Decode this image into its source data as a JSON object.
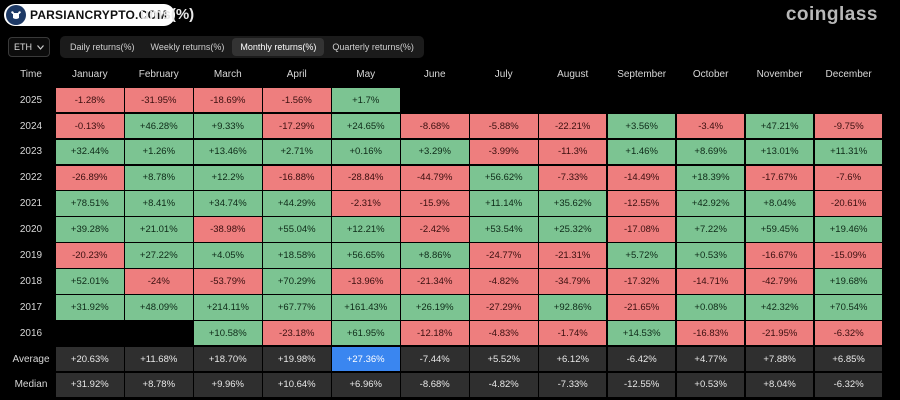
{
  "watermark": {
    "text": "PARSIANCRYPTO.COM",
    "icon": "bull-icon"
  },
  "title": "ums(%)",
  "brand": "coinglass",
  "asset_selector": {
    "value": "ETH",
    "icon": "chevron-down-icon"
  },
  "tabs": [
    {
      "label": "Daily returns(%)",
      "active": false
    },
    {
      "label": "Weekly returns(%)",
      "active": false
    },
    {
      "label": "Monthly returns(%)",
      "active": true
    },
    {
      "label": "Quarterly returns(%)",
      "active": false
    }
  ],
  "table": {
    "corner_label": "Time",
    "months": [
      "January",
      "February",
      "March",
      "April",
      "May",
      "June",
      "July",
      "August",
      "September",
      "October",
      "November",
      "December"
    ],
    "rows": [
      {
        "label": "2025",
        "values": [
          "-1.28%",
          "-31.95%",
          "-18.69%",
          "-1.56%",
          "+1.7%",
          "",
          "",
          "",
          "",
          "",
          "",
          ""
        ]
      },
      {
        "label": "2024",
        "values": [
          "-0.13%",
          "+46.28%",
          "+9.33%",
          "-17.29%",
          "+24.65%",
          "-8.68%",
          "-5.88%",
          "-22.21%",
          "+3.56%",
          "-3.4%",
          "+47.21%",
          "-9.75%"
        ]
      },
      {
        "label": "2023",
        "values": [
          "+32.44%",
          "+1.26%",
          "+13.46%",
          "+2.71%",
          "+0.16%",
          "+3.29%",
          "-3.99%",
          "-11.3%",
          "+1.46%",
          "+8.69%",
          "+13.01%",
          "+11.31%"
        ]
      },
      {
        "label": "2022",
        "values": [
          "-26.89%",
          "+8.78%",
          "+12.2%",
          "-16.88%",
          "-28.84%",
          "-44.79%",
          "+56.62%",
          "-7.33%",
          "-14.49%",
          "+18.39%",
          "-17.67%",
          "-7.6%"
        ]
      },
      {
        "label": "2021",
        "values": [
          "+78.51%",
          "+8.41%",
          "+34.74%",
          "+44.29%",
          "-2.31%",
          "-15.9%",
          "+11.14%",
          "+35.62%",
          "-12.55%",
          "+42.92%",
          "+8.04%",
          "-20.61%"
        ]
      },
      {
        "label": "2020",
        "values": [
          "+39.28%",
          "+21.01%",
          "-38.98%",
          "+55.04%",
          "+12.21%",
          "-2.42%",
          "+53.54%",
          "+25.32%",
          "-17.08%",
          "+7.22%",
          "+59.45%",
          "+19.46%"
        ]
      },
      {
        "label": "2019",
        "values": [
          "-20.23%",
          "+27.22%",
          "+4.05%",
          "+18.58%",
          "+56.65%",
          "+8.86%",
          "-24.77%",
          "-21.31%",
          "+5.72%",
          "+0.53%",
          "-16.67%",
          "-15.09%"
        ]
      },
      {
        "label": "2018",
        "values": [
          "+52.01%",
          "-24%",
          "-53.79%",
          "+70.29%",
          "-13.96%",
          "-21.34%",
          "-4.82%",
          "-34.79%",
          "-17.32%",
          "-14.71%",
          "-42.79%",
          "+19.68%"
        ]
      },
      {
        "label": "2017",
        "values": [
          "+31.92%",
          "+48.09%",
          "+214.11%",
          "+67.77%",
          "+161.43%",
          "+26.19%",
          "-27.29%",
          "+92.86%",
          "-21.65%",
          "+0.08%",
          "+42.32%",
          "+70.54%"
        ]
      },
      {
        "label": "2016",
        "values": [
          "",
          "",
          "+10.58%",
          "-23.18%",
          "+61.95%",
          "-12.18%",
          "-4.83%",
          "-1.74%",
          "+14.53%",
          "-16.83%",
          "-21.95%",
          "-6.32%"
        ]
      }
    ],
    "stats": [
      {
        "label": "Average",
        "values": [
          "+20.63%",
          "+11.68%",
          "+18.70%",
          "+19.98%",
          "+27.36%",
          "-7.44%",
          "+5.52%",
          "+6.12%",
          "-6.42%",
          "+4.77%",
          "+7.88%",
          "+6.85%"
        ],
        "highlight_index": 4
      },
      {
        "label": "Median",
        "values": [
          "+31.92%",
          "+8.78%",
          "+9.96%",
          "+10.64%",
          "+6.96%",
          "-8.68%",
          "-4.82%",
          "-7.33%",
          "-12.55%",
          "+0.53%",
          "+8.04%",
          "-6.32%"
        ],
        "highlight_index": -1
      }
    ]
  },
  "colors": {
    "positive": "#7cc492",
    "negative": "#ee7e7e",
    "stat": "#2f2f2f",
    "highlight": "#3a86f0"
  }
}
